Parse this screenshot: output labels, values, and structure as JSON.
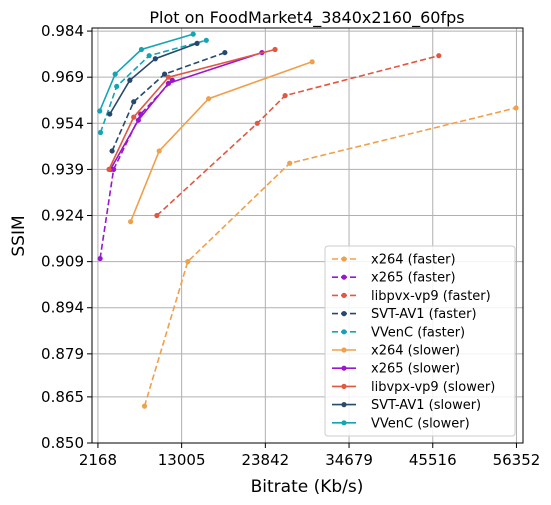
{
  "chart_data": {
    "type": "line",
    "title": "Plot on FoodMarket4_3840x2160_60fps",
    "xlabel": "Bitrate (Kb/s)",
    "ylabel": "SSIM",
    "xlim": [
      1400,
      57200
    ],
    "ylim": [
      0.85,
      0.985
    ],
    "xticks": [
      2168,
      13005,
      23842,
      34679,
      45516,
      56352
    ],
    "yticks": [
      0.85,
      0.865,
      0.879,
      0.894,
      0.909,
      0.924,
      0.939,
      0.954,
      0.969,
      0.984
    ],
    "ytick_labels": [
      "0.850",
      "0.865",
      "0.879",
      "0.894",
      "0.909",
      "0.924",
      "0.939",
      "0.954",
      "0.969",
      "0.984"
    ],
    "grid": true,
    "legend_position": "lower-right",
    "series": [
      {
        "name": "x264 (faster)",
        "color": "#f0a04b",
        "dash": true,
        "points": [
          [
            8200,
            0.862
          ],
          [
            13800,
            0.909
          ],
          [
            27000,
            0.941
          ],
          [
            56300,
            0.959
          ]
        ]
      },
      {
        "name": "x265 (faster)",
        "color": "#9a16cf",
        "dash": true,
        "points": [
          [
            2450,
            0.91
          ],
          [
            4200,
            0.939
          ],
          [
            7700,
            0.957
          ],
          [
            11800,
            0.968
          ]
        ]
      },
      {
        "name": "libpvx-vp9 (faster)",
        "color": "#e15741",
        "dash": true,
        "points": [
          [
            9800,
            0.924
          ],
          [
            22800,
            0.954
          ],
          [
            26400,
            0.963
          ],
          [
            46300,
            0.976
          ]
        ]
      },
      {
        "name": "SVT-AV1 (faster)",
        "color": "#27496d",
        "dash": true,
        "points": [
          [
            4000,
            0.945
          ],
          [
            6800,
            0.961
          ],
          [
            10800,
            0.97
          ],
          [
            18600,
            0.977
          ]
        ]
      },
      {
        "name": "VVenC (faster)",
        "color": "#13a5b3",
        "dash": true,
        "points": [
          [
            2500,
            0.951
          ],
          [
            4600,
            0.966
          ],
          [
            8800,
            0.976
          ],
          [
            16200,
            0.981
          ]
        ]
      },
      {
        "name": "x264 (slower)",
        "color": "#f0a04b",
        "dash": false,
        "points": [
          [
            6400,
            0.922
          ],
          [
            10100,
            0.945
          ],
          [
            16500,
            0.962
          ],
          [
            29900,
            0.974
          ]
        ]
      },
      {
        "name": "x265 (slower)",
        "color": "#9a16cf",
        "dash": false,
        "points": [
          [
            3800,
            0.939
          ],
          [
            7400,
            0.955
          ],
          [
            11300,
            0.967
          ],
          [
            23400,
            0.977
          ]
        ]
      },
      {
        "name": "libvpx-vp9 (slower)",
        "color": "#e15741",
        "dash": false,
        "points": [
          [
            3600,
            0.939
          ],
          [
            6800,
            0.956
          ],
          [
            11300,
            0.969
          ],
          [
            25100,
            0.978
          ]
        ]
      },
      {
        "name": "SVT-AV1 (slower)",
        "color": "#27496d",
        "dash": false,
        "points": [
          [
            3700,
            0.957
          ],
          [
            6300,
            0.968
          ],
          [
            9600,
            0.975
          ],
          [
            15000,
            0.98
          ]
        ]
      },
      {
        "name": "VVenC (slower)",
        "color": "#13a5b3",
        "dash": false,
        "points": [
          [
            2400,
            0.958
          ],
          [
            4400,
            0.97
          ],
          [
            7800,
            0.978
          ],
          [
            14500,
            0.983
          ]
        ]
      }
    ]
  }
}
